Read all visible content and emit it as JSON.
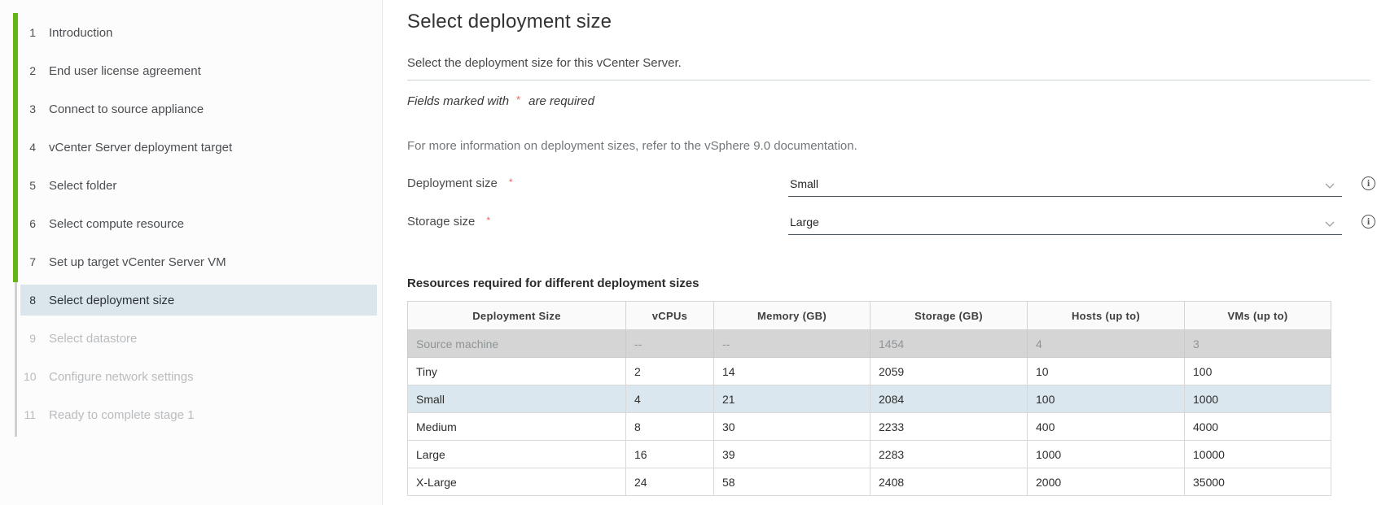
{
  "sidebar": {
    "steps": [
      {
        "num": "1",
        "label": "Introduction",
        "state": "done"
      },
      {
        "num": "2",
        "label": "End user license agreement",
        "state": "done"
      },
      {
        "num": "3",
        "label": "Connect to source appliance",
        "state": "done"
      },
      {
        "num": "4",
        "label": "vCenter Server deployment target",
        "state": "done"
      },
      {
        "num": "5",
        "label": "Select folder",
        "state": "done"
      },
      {
        "num": "6",
        "label": "Select compute resource",
        "state": "done"
      },
      {
        "num": "7",
        "label": "Set up target vCenter Server VM",
        "state": "done"
      },
      {
        "num": "8",
        "label": "Select deployment size",
        "state": "active"
      },
      {
        "num": "9",
        "label": "Select datastore",
        "state": "disabled"
      },
      {
        "num": "10",
        "label": "Configure network settings",
        "state": "disabled"
      },
      {
        "num": "11",
        "label": "Ready to complete stage 1",
        "state": "disabled"
      }
    ]
  },
  "main": {
    "title": "Select deployment size",
    "intro": "Select the deployment size for this vCenter Server.",
    "required_note": {
      "prefix": "Fields marked with",
      "asterisk": "*",
      "suffix": "are required"
    },
    "info_text": "For more information on deployment sizes, refer to the vSphere 9.0 documentation.",
    "fields": [
      {
        "label": "Deployment size",
        "required": "*",
        "value": "Small",
        "info_glyph": "i"
      },
      {
        "label": "Storage size",
        "required": "*",
        "value": "Large",
        "info_glyph": "i"
      }
    ],
    "table": {
      "title": "Resources required for different deployment sizes",
      "columns": [
        "Deployment Size",
        "vCPUs",
        "Memory (GB)",
        "Storage (GB)",
        "Hosts (up to)",
        "VMs (up to)"
      ],
      "rows": [
        {
          "style": "source",
          "cells": [
            "Source machine",
            "--",
            "--",
            "1454",
            "4",
            "3"
          ]
        },
        {
          "style": "",
          "cells": [
            "Tiny",
            "2",
            "14",
            "2059",
            "10",
            "100"
          ]
        },
        {
          "style": "selected",
          "cells": [
            "Small",
            "4",
            "21",
            "2084",
            "100",
            "1000"
          ]
        },
        {
          "style": "",
          "cells": [
            "Medium",
            "8",
            "30",
            "2233",
            "400",
            "4000"
          ]
        },
        {
          "style": "",
          "cells": [
            "Large",
            "16",
            "39",
            "2283",
            "1000",
            "10000"
          ]
        },
        {
          "style": "",
          "cells": [
            "X-Large",
            "24",
            "58",
            "2408",
            "2000",
            "35000"
          ]
        }
      ]
    }
  },
  "colors": {
    "accent_green": "#62b515",
    "active_step_highlight": "#dbe6ec",
    "selected_row_highlight": "#dbe7ee",
    "required_red": "#e8685c"
  }
}
